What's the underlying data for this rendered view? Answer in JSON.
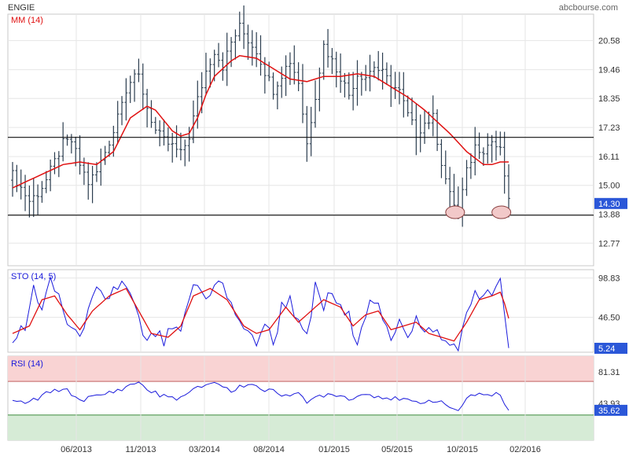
{
  "header": {
    "ticker": "ENGIE",
    "source": "abcbourse.com"
  },
  "colors": {
    "price_bar": "#2b3d4f",
    "ma_line": "#e01010",
    "sto_k": "#1a1adc",
    "sto_d": "#e01010",
    "rsi_line": "#1a1adc",
    "rsi_overbought_fill": "#f9d3d3",
    "rsi_oversold_fill": "#d6ebd6",
    "last_value_badge": "#2b57d8",
    "grid": "#e6e6e6",
    "annotation_circle": "#f2c9c9"
  },
  "chart_data": [
    {
      "id": "price",
      "type": "ohlc",
      "title": "ENGIE",
      "indicator_label": "MM (14)",
      "ylim": [
        11.9,
        21.6
      ],
      "yticks": [
        12.77,
        13.88,
        15.0,
        16.11,
        17.23,
        18.35,
        19.46,
        20.58
      ],
      "x_tick_labels": [
        "06/2013",
        "11/2013",
        "03/2014",
        "08/2014",
        "01/2015",
        "05/2015",
        "10/2015",
        "02/2016"
      ],
      "last_value": "14.30",
      "horizontal_lines": [
        16.85,
        13.85
      ],
      "annotations": [
        {
          "shape": "ellipse",
          "x_index": 106,
          "value": 13.9
        },
        {
          "shape": "ellipse",
          "x_index": 117,
          "value": 13.9
        }
      ],
      "close_anchors": [
        [
          0,
          15.4
        ],
        [
          2,
          14.9
        ],
        [
          4,
          14.4
        ],
        [
          6,
          14.7
        ],
        [
          8,
          15.2
        ],
        [
          10,
          15.9
        ],
        [
          12,
          16.6
        ],
        [
          14,
          16.7
        ],
        [
          16,
          15.8
        ],
        [
          18,
          15.1
        ],
        [
          20,
          15.5
        ],
        [
          22,
          16.3
        ],
        [
          24,
          17.1
        ],
        [
          26,
          18.4
        ],
        [
          28,
          19.0
        ],
        [
          30,
          19.2
        ],
        [
          32,
          18.0
        ],
        [
          34,
          17.1
        ],
        [
          36,
          16.7
        ],
        [
          38,
          16.5
        ],
        [
          40,
          16.2
        ],
        [
          42,
          16.9
        ],
        [
          44,
          18.3
        ],
        [
          46,
          19.4
        ],
        [
          48,
          20.2
        ],
        [
          50,
          19.6
        ],
        [
          52,
          20.5
        ],
        [
          54,
          21.1
        ],
        [
          56,
          20.6
        ],
        [
          58,
          20.2
        ],
        [
          60,
          19.4
        ],
        [
          62,
          18.7
        ],
        [
          64,
          19.3
        ],
        [
          66,
          19.8
        ],
        [
          68,
          19.0
        ],
        [
          70,
          16.6
        ],
        [
          72,
          18.5
        ],
        [
          74,
          20.4
        ],
        [
          76,
          19.8
        ],
        [
          78,
          19.2
        ],
        [
          80,
          18.5
        ],
        [
          82,
          19.3
        ],
        [
          84,
          19.2
        ],
        [
          86,
          19.6
        ],
        [
          88,
          19.3
        ],
        [
          90,
          18.9
        ],
        [
          92,
          18.6
        ],
        [
          94,
          17.7
        ],
        [
          96,
          17.0
        ],
        [
          98,
          17.4
        ],
        [
          100,
          17.6
        ],
        [
          102,
          15.9
        ],
        [
          104,
          14.6
        ],
        [
          106,
          14.0
        ],
        [
          108,
          15.5
        ],
        [
          110,
          16.5
        ],
        [
          112,
          16.4
        ],
        [
          114,
          16.7
        ],
        [
          116,
          16.3
        ],
        [
          117,
          15.4
        ],
        [
          118,
          14.3
        ]
      ],
      "ma_anchors": [
        [
          0,
          14.9
        ],
        [
          4,
          15.2
        ],
        [
          8,
          15.5
        ],
        [
          12,
          15.8
        ],
        [
          16,
          15.9
        ],
        [
          20,
          15.8
        ],
        [
          24,
          16.3
        ],
        [
          28,
          17.6
        ],
        [
          32,
          18.05
        ],
        [
          34,
          17.9
        ],
        [
          38,
          17.1
        ],
        [
          40,
          16.9
        ],
        [
          42,
          17.0
        ],
        [
          44,
          17.6
        ],
        [
          46,
          18.5
        ],
        [
          48,
          19.2
        ],
        [
          52,
          19.8
        ],
        [
          54,
          20.0
        ],
        [
          58,
          19.9
        ],
        [
          62,
          19.5
        ],
        [
          66,
          19.1
        ],
        [
          70,
          19.0
        ],
        [
          74,
          19.2
        ],
        [
          78,
          19.2
        ],
        [
          82,
          19.3
        ],
        [
          86,
          19.2
        ],
        [
          90,
          18.8
        ],
        [
          94,
          18.4
        ],
        [
          98,
          17.9
        ],
        [
          100,
          17.6
        ],
        [
          104,
          17.0
        ],
        [
          108,
          16.3
        ],
        [
          112,
          15.8
        ],
        [
          114,
          15.8
        ],
        [
          116,
          15.9
        ],
        [
          118,
          15.9
        ]
      ]
    },
    {
      "id": "stochastic",
      "type": "line",
      "indicator_label": "STO (14, 5)",
      "ylim": [
        0,
        110
      ],
      "yticks": [
        46.5,
        98.83
      ],
      "last_value": "5.24",
      "k_anchors": [
        [
          0,
          20
        ],
        [
          3,
          30
        ],
        [
          5,
          85
        ],
        [
          7,
          60
        ],
        [
          9,
          90
        ],
        [
          11,
          75
        ],
        [
          13,
          40
        ],
        [
          15,
          20
        ],
        [
          18,
          50
        ],
        [
          20,
          80
        ],
        [
          22,
          65
        ],
        [
          24,
          85
        ],
        [
          26,
          90
        ],
        [
          28,
          75
        ],
        [
          30,
          40
        ],
        [
          32,
          10
        ],
        [
          34,
          25
        ],
        [
          36,
          12
        ],
        [
          38,
          30
        ],
        [
          40,
          20
        ],
        [
          42,
          75
        ],
        [
          44,
          90
        ],
        [
          46,
          70
        ],
        [
          48,
          95
        ],
        [
          50,
          88
        ],
        [
          52,
          60
        ],
        [
          54,
          45
        ],
        [
          56,
          20
        ],
        [
          58,
          15
        ],
        [
          60,
          40
        ],
        [
          62,
          10
        ],
        [
          64,
          60
        ],
        [
          66,
          75
        ],
        [
          68,
          35
        ],
        [
          70,
          15
        ],
        [
          72,
          85
        ],
        [
          74,
          60
        ],
        [
          76,
          80
        ],
        [
          78,
          55
        ],
        [
          80,
          45
        ],
        [
          82,
          20
        ],
        [
          84,
          55
        ],
        [
          86,
          70
        ],
        [
          88,
          40
        ],
        [
          90,
          15
        ],
        [
          92,
          50
        ],
        [
          94,
          25
        ],
        [
          96,
          45
        ],
        [
          98,
          20
        ],
        [
          100,
          35
        ],
        [
          102,
          15
        ],
        [
          104,
          10
        ],
        [
          106,
          8
        ],
        [
          108,
          45
        ],
        [
          110,
          85
        ],
        [
          112,
          70
        ],
        [
          114,
          80
        ],
        [
          116,
          90
        ],
        [
          117,
          45
        ],
        [
          118,
          5
        ]
      ],
      "d_anchors": [
        [
          0,
          25
        ],
        [
          4,
          35
        ],
        [
          7,
          70
        ],
        [
          10,
          75
        ],
        [
          13,
          50
        ],
        [
          16,
          30
        ],
        [
          19,
          55
        ],
        [
          23,
          75
        ],
        [
          27,
          85
        ],
        [
          30,
          55
        ],
        [
          33,
          25
        ],
        [
          37,
          20
        ],
        [
          40,
          35
        ],
        [
          43,
          75
        ],
        [
          47,
          85
        ],
        [
          51,
          70
        ],
        [
          55,
          35
        ],
        [
          58,
          25
        ],
        [
          61,
          30
        ],
        [
          65,
          60
        ],
        [
          68,
          40
        ],
        [
          71,
          55
        ],
        [
          74,
          70
        ],
        [
          78,
          60
        ],
        [
          81,
          35
        ],
        [
          84,
          50
        ],
        [
          87,
          55
        ],
        [
          90,
          30
        ],
        [
          93,
          35
        ],
        [
          96,
          40
        ],
        [
          99,
          25
        ],
        [
          102,
          20
        ],
        [
          105,
          15
        ],
        [
          108,
          40
        ],
        [
          111,
          70
        ],
        [
          114,
          75
        ],
        [
          116,
          80
        ],
        [
          117,
          65
        ],
        [
          118,
          45
        ]
      ]
    },
    {
      "id": "rsi",
      "type": "line",
      "indicator_label": "RSI (14)",
      "ylim": [
        0,
        100
      ],
      "yticks": [
        43.93,
        81.31
      ],
      "overbought": 70,
      "oversold": 30,
      "last_value": "35.62",
      "anchors": [
        [
          0,
          45
        ],
        [
          4,
          45
        ],
        [
          8,
          55
        ],
        [
          12,
          62
        ],
        [
          16,
          48
        ],
        [
          20,
          52
        ],
        [
          24,
          58
        ],
        [
          28,
          65
        ],
        [
          30,
          70
        ],
        [
          32,
          60
        ],
        [
          36,
          52
        ],
        [
          40,
          50
        ],
        [
          44,
          62
        ],
        [
          48,
          70
        ],
        [
          52,
          58
        ],
        [
          56,
          68
        ],
        [
          60,
          60
        ],
        [
          64,
          55
        ],
        [
          68,
          56
        ],
        [
          70,
          42
        ],
        [
          72,
          52
        ],
        [
          76,
          56
        ],
        [
          80,
          50
        ],
        [
          84,
          55
        ],
        [
          88,
          52
        ],
        [
          92,
          48
        ],
        [
          96,
          45
        ],
        [
          100,
          48
        ],
        [
          104,
          40
        ],
        [
          106,
          35
        ],
        [
          108,
          50
        ],
        [
          112,
          55
        ],
        [
          116,
          55
        ],
        [
          117,
          42
        ],
        [
          118,
          36
        ]
      ]
    }
  ]
}
